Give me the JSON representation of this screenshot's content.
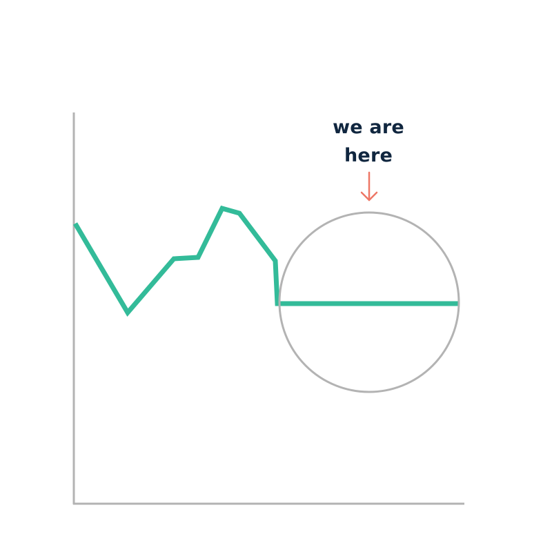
{
  "colors": {
    "background": "#ffffff",
    "axis": "#b3b3b3",
    "line": "#33bb99",
    "highlight_circle": "#b3b3b3",
    "annotation_text": "#10263f",
    "arrow": "#ee7766"
  },
  "annotation": {
    "line1": "we are",
    "line2": "here",
    "pointer_icon": "arrow-down-icon"
  }
}
